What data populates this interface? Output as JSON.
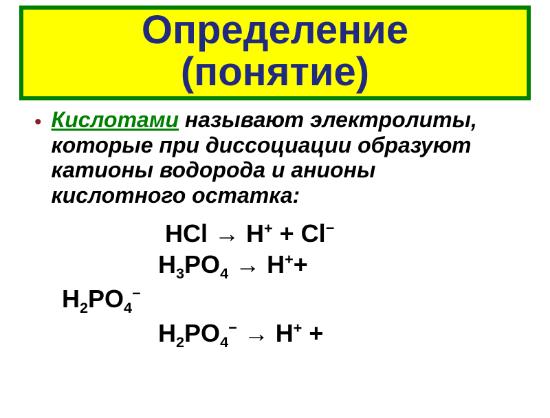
{
  "colors": {
    "title_bg": "#ffff00",
    "title_border": "#008000",
    "title_text": "#1f2a80",
    "bullet": "#8a1E1E",
    "term": "#008000",
    "body_text": "#000000",
    "background": "#ffffff"
  },
  "title": {
    "line1": "Определение",
    "line2": "(понятие)",
    "fontsize": 58
  },
  "definition": {
    "term": "Кислотами",
    "rest": " называют электролиты, которые при диссоциации образуют катионы водорода и анионы кислотного остатка:",
    "fontsize": 32
  },
  "equations": {
    "fontsize": 36,
    "lines": [
      {
        "indent": "               ",
        "html": "HCl → H<sup>+</sup> + Cl<sup>−</sup>"
      },
      {
        "indent": "              ",
        "html": "H<sub>3</sub>PO<sub>4</sub> → H<sup>+</sup>+"
      },
      {
        "indent": "",
        "html": "H<sub>2</sub>PO<sub>4</sub><sup>−</sup>"
      },
      {
        "indent": "              ",
        "html": "H<sub>2</sub>PO<sub>4</sub><sup>−</sup> → H<sup>+</sup> +"
      }
    ]
  }
}
